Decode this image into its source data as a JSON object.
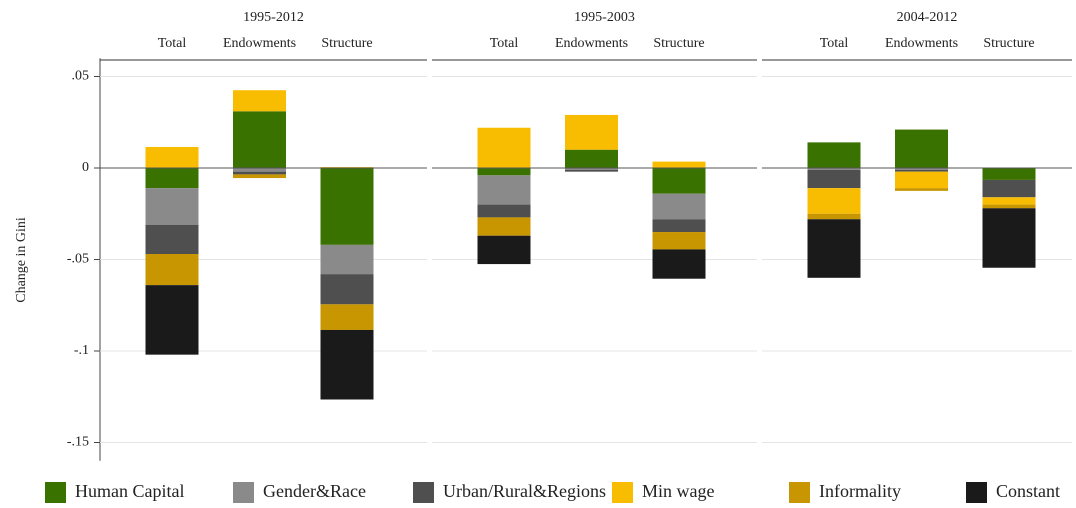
{
  "chart_data": {
    "type": "stacked_bar",
    "y_label": "Change in Gini",
    "panels": [
      "1995-2012",
      "1995-2003",
      "2004-2012"
    ],
    "categories": [
      "Total",
      "Endowments",
      "Structure"
    ],
    "series": [
      {
        "name": "Human Capital",
        "color": "#3a7200",
        "values": [
          [
            -0.011,
            0.031,
            -0.042
          ],
          [
            -0.004,
            0.01,
            -0.014
          ],
          [
            0.014,
            0.021,
            -0.0065
          ]
        ]
      },
      {
        "name": "Gender&Race",
        "color": "#8a8a8a",
        "values": [
          [
            -0.02,
            -0.002,
            -0.016
          ],
          [
            -0.016,
            -0.001,
            -0.014
          ],
          [
            -0.001,
            -0.001,
            0
          ]
        ]
      },
      {
        "name": "Urban/Rural&Regions",
        "color": "#4f4f4f",
        "values": [
          [
            -0.016,
            -0.0015,
            -0.0165
          ],
          [
            -0.007,
            -0.001,
            -0.007
          ],
          [
            -0.01,
            -0.001,
            -0.0095
          ]
        ]
      },
      {
        "name": "Min wage",
        "color": "#f8bd00",
        "values": [
          [
            0.0115,
            0.0115,
            0.0005
          ],
          [
            0.022,
            0.019,
            0.0035
          ],
          [
            -0.014,
            -0.009,
            -0.004
          ]
        ]
      },
      {
        "name": "Informality",
        "color": "#c89600",
        "values": [
          [
            -0.017,
            -0.002,
            -0.014
          ],
          [
            -0.01,
            0,
            -0.0095
          ],
          [
            -0.003,
            -0.0015,
            -0.002
          ]
        ]
      },
      {
        "name": "Constant",
        "color": "#1a1a1a",
        "values": [
          [
            -0.038,
            0,
            -0.038
          ],
          [
            -0.0155,
            0,
            -0.016
          ],
          [
            -0.032,
            0,
            -0.0325
          ]
        ]
      }
    ],
    "ylim": [
      -0.16,
      0.06
    ],
    "yticks": [
      {
        "value": 0.05,
        "label": ".05"
      },
      0,
      {
        "value": -0.05,
        "label": "-.05"
      },
      {
        "value": -0.1,
        "label": "-.1"
      },
      {
        "value": -0.15,
        "label": "-.15"
      }
    ],
    "grid": true
  }
}
